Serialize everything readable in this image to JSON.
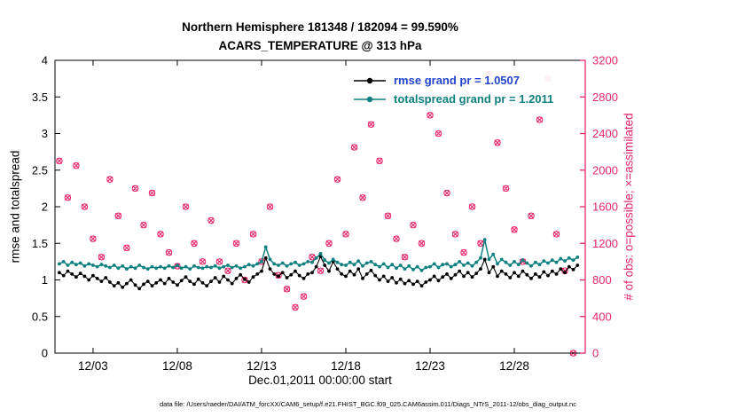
{
  "header": {
    "title_line1": "Northern Hemisphere 181348 / 182094 = 99.590%",
    "title_line2": "ACARS_TEMPERATURE @ 313 hPa"
  },
  "footer": {
    "data_file": "data file: /Users/raeder/DAI/ATM_forcXX/CAM6_setup/f.e21.FHIST_BGC.f09_025.CAM6assim.011/Diags_NTrS_2011-12/obs_diag_output.nc"
  },
  "chart_data": {
    "type": "line",
    "title": "Northern Hemisphere 181348 / 182094 = 99.590%",
    "subtitle": "ACARS_TEMPERATURE @ 313 hPa",
    "xlabel": "Dec.01,2011 00:00:00 start",
    "ylabel_left": "rmse and totalspread",
    "ylabel_right": "# of obs: o=possible; ×=assimilated",
    "ylim_left": [
      0,
      4
    ],
    "ylim_right": [
      0,
      3200
    ],
    "yticks_left": [
      0,
      0.5,
      1,
      1.5,
      2,
      2.5,
      3,
      3.5,
      4
    ],
    "yticks_right": [
      0,
      400,
      800,
      1200,
      1600,
      2000,
      2400,
      2800,
      3200
    ],
    "x_range_days": [
      -0.26,
      31.21
    ],
    "xticks": [
      {
        "label": "12/03",
        "day": 2
      },
      {
        "label": "12/08",
        "day": 7
      },
      {
        "label": "12/13",
        "day": 12
      },
      {
        "label": "12/18",
        "day": 17
      },
      {
        "label": "12/23",
        "day": 22
      },
      {
        "label": "12/28",
        "day": 27
      }
    ],
    "grid": false,
    "legend_position": "top-center-inside",
    "colors": {
      "axis_right": "#e6276b",
      "legend_rmse_text": "#2244cc"
    },
    "series": [
      {
        "name": "rmse",
        "legend": "rmse grand pr = 1.0507",
        "grand_mean": 1.0507,
        "color": "#000000",
        "legend_color": "#2244cc",
        "t_start": 0,
        "t_step": 0.25,
        "values": [
          1.1,
          1.06,
          1.12,
          1.08,
          1.04,
          1.09,
          1.05,
          1.0,
          1.06,
          1.02,
          0.98,
          1.03,
          0.97,
          0.92,
          0.96,
          0.9,
          0.95,
          1.0,
          0.93,
          0.88,
          0.94,
          0.98,
          0.92,
          0.96,
          1.0,
          0.95,
          1.02,
          0.97,
          0.93,
          0.99,
          1.04,
          0.98,
          0.94,
          1.01,
          0.96,
          0.92,
          0.98,
          1.03,
          0.97,
          1.05,
          1.0,
          0.95,
          1.02,
          1.07,
          1.01,
          0.97,
          1.04,
          1.08,
          1.12,
          1.3,
          1.15,
          1.08,
          1.05,
          1.1,
          1.03,
          1.07,
          1.12,
          1.06,
          1.02,
          1.08,
          1.1,
          1.18,
          1.32,
          1.2,
          1.12,
          1.25,
          1.15,
          1.08,
          1.05,
          1.12,
          1.07,
          1.15,
          1.02,
          1.08,
          1.13,
          1.06,
          1.0,
          1.05,
          0.98,
          1.03,
          0.96,
          1.01,
          0.95,
          0.99,
          0.94,
          0.98,
          0.92,
          0.97,
          1.0,
          1.05,
          0.99,
          1.04,
          1.08,
          1.02,
          1.07,
          1.12,
          1.05,
          1.1,
          1.04,
          1.09,
          1.15,
          1.28,
          1.1,
          1.18,
          1.05,
          1.12,
          1.08,
          1.03,
          1.1,
          1.05,
          1.12,
          1.07,
          1.02,
          1.08,
          1.04,
          1.11,
          1.06,
          1.12,
          1.08,
          1.15,
          1.1,
          1.18,
          1.14,
          1.2
        ]
      },
      {
        "name": "totalspread",
        "legend": "totalspread grand pr = 1.2011",
        "grand_mean": 1.2011,
        "color": "#0f8080",
        "legend_color": "#0f8080",
        "t_start": 0,
        "t_step": 0.25,
        "values": [
          1.22,
          1.25,
          1.2,
          1.24,
          1.21,
          1.23,
          1.19,
          1.22,
          1.2,
          1.18,
          1.21,
          1.19,
          1.17,
          1.2,
          1.16,
          1.19,
          1.15,
          1.18,
          1.16,
          1.2,
          1.17,
          1.15,
          1.18,
          1.16,
          1.18,
          1.16,
          1.19,
          1.17,
          1.2,
          1.16,
          1.18,
          1.15,
          1.19,
          1.17,
          1.16,
          1.18,
          1.17,
          1.19,
          1.16,
          1.18,
          1.2,
          1.17,
          1.19,
          1.16,
          1.18,
          1.21,
          1.19,
          1.22,
          1.25,
          1.45,
          1.28,
          1.22,
          1.2,
          1.23,
          1.19,
          1.22,
          1.24,
          1.2,
          1.22,
          1.25,
          1.24,
          1.3,
          1.36,
          1.27,
          1.23,
          1.28,
          1.24,
          1.21,
          1.2,
          1.24,
          1.21,
          1.26,
          1.19,
          1.23,
          1.25,
          1.21,
          1.18,
          1.22,
          1.17,
          1.21,
          1.16,
          1.2,
          1.15,
          1.19,
          1.14,
          1.18,
          1.13,
          1.17,
          1.18,
          1.22,
          1.17,
          1.21,
          1.22,
          1.18,
          1.21,
          1.25,
          1.2,
          1.23,
          1.19,
          1.24,
          1.3,
          1.55,
          1.28,
          1.35,
          1.22,
          1.28,
          1.24,
          1.2,
          1.25,
          1.21,
          1.27,
          1.23,
          1.19,
          1.24,
          1.21,
          1.26,
          1.23,
          1.27,
          1.24,
          1.29,
          1.26,
          1.3,
          1.27,
          1.31
        ]
      }
    ],
    "obs": {
      "name": "# of obs",
      "marker": "o-and-x",
      "possible_equals_assimilated": true,
      "color": "#e6276b",
      "t_start": 0,
      "t_step": 0.5,
      "values": [
        2100,
        1700,
        2050,
        1600,
        1250,
        1050,
        1900,
        1500,
        1150,
        1800,
        1400,
        1750,
        1300,
        1100,
        950,
        1600,
        1200,
        1000,
        1450,
        1000,
        900,
        1200,
        800,
        1300,
        1000,
        1600,
        850,
        700,
        500,
        620,
        1050,
        900,
        1200,
        1900,
        1300,
        2250,
        1700,
        2500,
        2100,
        1500,
        1250,
        1050,
        1400,
        1200,
        2600,
        2400,
        1750,
        1300,
        1100,
        1600,
        1200,
        3050,
        2300,
        1800,
        1350,
        1000,
        1500,
        2550,
        3000,
        1300,
        900,
        0
      ]
    }
  },
  "legend": {
    "rmse_label": "rmse grand pr = 1.0507",
    "totalspread_label": "totalspread grand pr = 1.2011"
  }
}
